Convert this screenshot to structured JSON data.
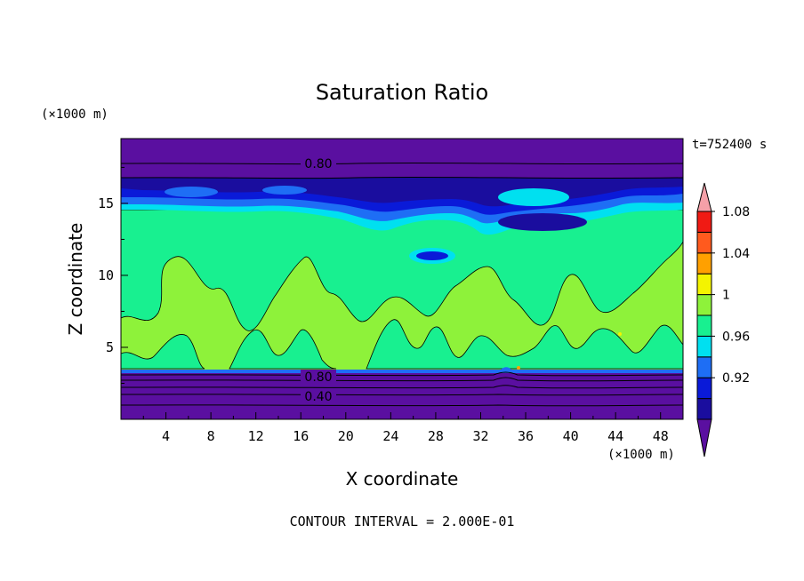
{
  "chart_data": {
    "type": "heatmap",
    "title": "Saturation Ratio",
    "xlabel": "X coordinate",
    "ylabel": "Z coordinate",
    "x_unit": "(×1000 m)",
    "y_unit": "(×1000 m)",
    "time_label": "t=752400 s",
    "footer": "CONTOUR INTERVAL = 2.000E-01",
    "xlim": [
      0,
      50
    ],
    "ylim": [
      0,
      19.5
    ],
    "x_ticks": [
      "4",
      "8",
      "12",
      "16",
      "20",
      "24",
      "28",
      "32",
      "36",
      "40",
      "44",
      "48"
    ],
    "y_ticks": [
      "5",
      "10",
      "15"
    ],
    "contour_labels": [
      "0.80",
      "0.80",
      "0.40"
    ],
    "colorbar": {
      "labels": [
        "1.08",
        "1.04",
        "1",
        "0.96",
        "0.92"
      ],
      "levels": [
        0.92,
        0.94,
        0.96,
        0.98,
        1.0,
        1.02,
        1.04,
        1.06,
        1.08
      ],
      "colors": [
        "#5a0fa0",
        "#1a0d9e",
        "#0a1ad8",
        "#1e6ef5",
        "#00e0f0",
        "#18f090",
        "#8ef23a",
        "#f4f400",
        "#ffa000",
        "#ff5a1e",
        "#f01a14",
        "#f5a0a8"
      ]
    },
    "layers": [
      {
        "z_range": [
          0,
          3.3
        ],
        "value": "< 0.92",
        "contour_levels": [
          0.8,
          0.4
        ]
      },
      {
        "z_range": [
          3.5,
          15
        ],
        "value": "0.96 - 1.00"
      },
      {
        "z_range": [
          15,
          17.2
        ],
        "value": "0.92 - 0.98"
      },
      {
        "z_range": [
          17.2,
          19.5
        ],
        "value": "< 0.92",
        "contour_levels": [
          0.8
        ]
      }
    ]
  }
}
